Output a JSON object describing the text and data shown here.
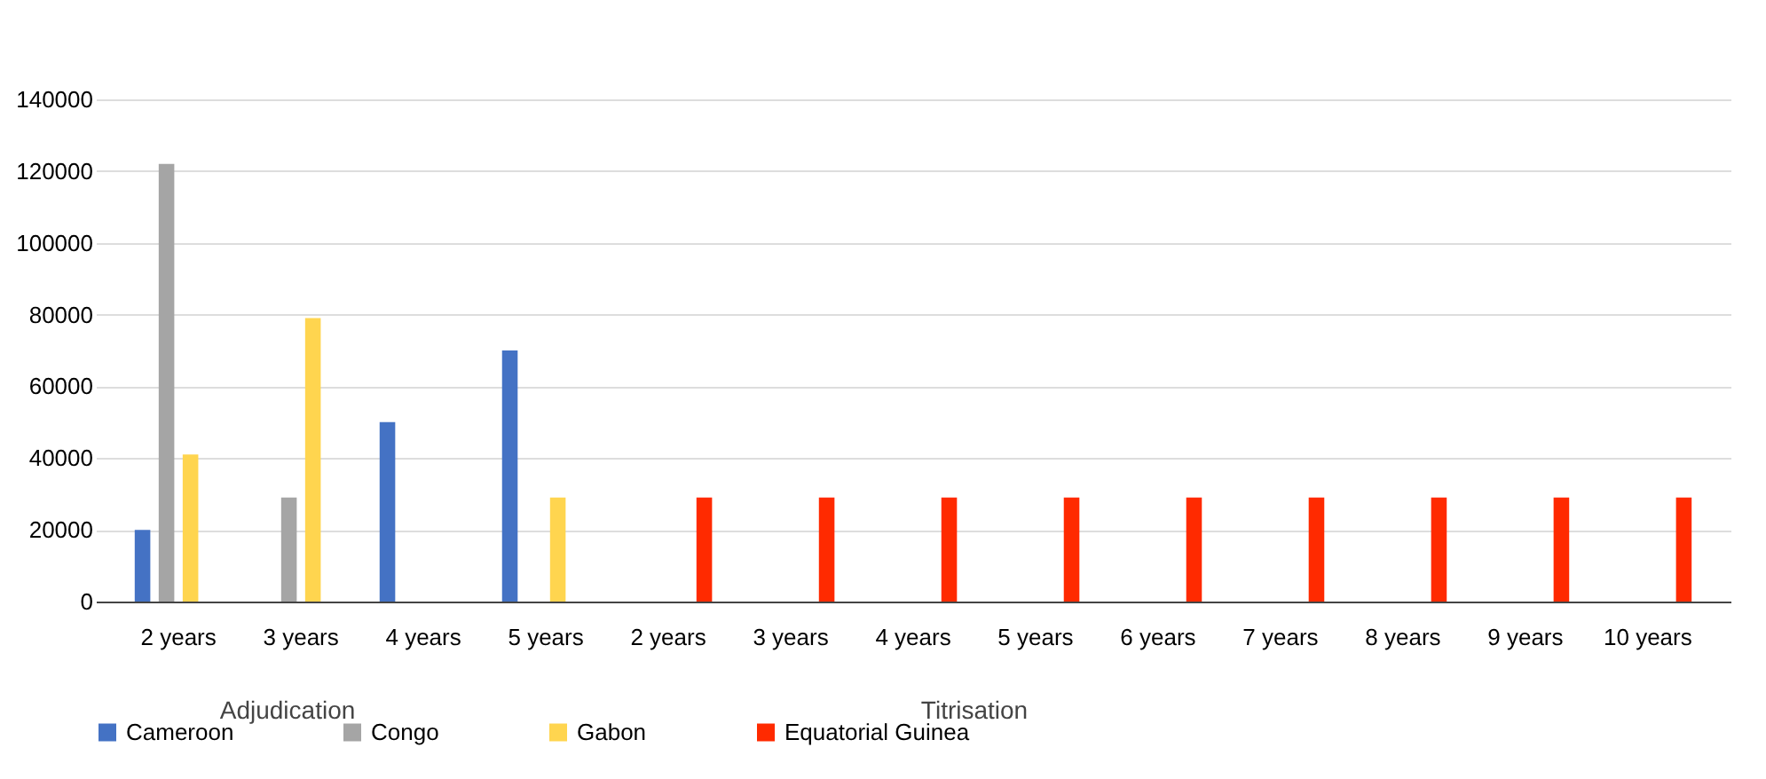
{
  "chart_data": {
    "type": "bar",
    "categories": [
      "2 years",
      "3 years",
      "4 years",
      "5 years",
      "2 years",
      "3 years",
      "4 years",
      "5 years",
      "6 years",
      "7 years",
      "8 years",
      "9 years",
      "10 years"
    ],
    "series": [
      {
        "name": "Cameroon",
        "color": "#4472c4",
        "values": [
          20000,
          null,
          50000,
          70000,
          null,
          null,
          null,
          null,
          null,
          null,
          null,
          null,
          null
        ]
      },
      {
        "name": "Congo",
        "color": "#a5a5a5",
        "values": [
          122000,
          29000,
          null,
          null,
          null,
          null,
          null,
          null,
          null,
          null,
          null,
          null,
          null
        ]
      },
      {
        "name": "Gabon",
        "color": "#ffd54f",
        "values": [
          41000,
          79000,
          null,
          29000,
          null,
          null,
          null,
          null,
          null,
          null,
          null,
          null,
          null
        ]
      },
      {
        "name": "Equatorial Guinea",
        "color": "#ff2a00",
        "values": [
          null,
          null,
          null,
          null,
          29000,
          29000,
          29000,
          29000,
          29000,
          29000,
          29000,
          29000,
          29000
        ]
      }
    ],
    "ylim": [
      0,
      140000
    ],
    "yticks": [
      0,
      20000,
      40000,
      60000,
      80000,
      100000,
      120000,
      140000
    ],
    "grid": "y",
    "legend": "bottom",
    "annotations": [
      "Adjudication",
      "Titrisation"
    ]
  }
}
